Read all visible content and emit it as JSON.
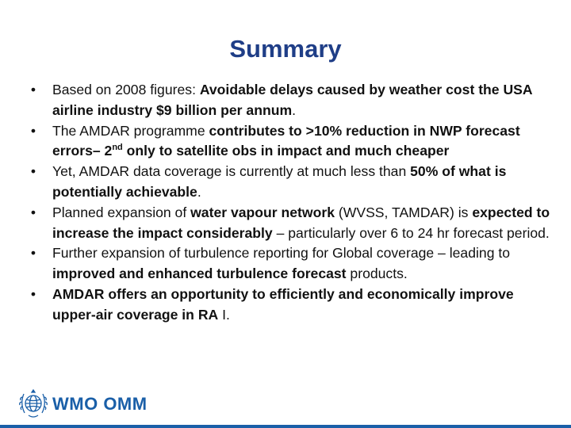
{
  "slide": {
    "title": "Summary",
    "bullets": [
      [
        {
          "t": "Based on 2008 figures: ",
          "b": false
        },
        {
          "t": "Avoidable delays caused by weather cost the USA airline industry $9 billion per annum",
          "b": true
        },
        {
          "t": ".",
          "b": false
        }
      ],
      [
        {
          "t": "The AMDAR programme ",
          "b": false
        },
        {
          "t": "contributes to >10% reduction in NWP forecast errors– 2",
          "b": true
        },
        {
          "t": "nd",
          "b": true,
          "sup": true
        },
        {
          "t": " only to satellite obs in impact and much cheaper",
          "b": true
        }
      ],
      [
        {
          "t": "Yet, AMDAR data coverage is currently at much less than ",
          "b": false
        },
        {
          "t": "50% of what is potentially achievable",
          "b": true
        },
        {
          "t": ".",
          "b": false
        }
      ],
      [
        {
          "t": "Planned expansion of ",
          "b": false
        },
        {
          "t": "water vapour network",
          "b": true
        },
        {
          "t": " (WVSS, TAMDAR) is ",
          "b": false
        },
        {
          "t": "expected to increase the impact considerably",
          "b": true
        },
        {
          "t": " – particularly over 6 to 24 hr forecast period.",
          "b": false
        }
      ],
      [
        {
          "t": "Further expansion of turbulence reporting for Global coverage – leading to ",
          "b": false
        },
        {
          "t": "improved and enhanced turbulence forecast",
          "b": true
        },
        {
          "t": " products.",
          "b": false
        }
      ],
      [
        {
          "t": "AMDAR offers an opportunity to efficiently and economically improve upper-air coverage in RA",
          "b": true
        },
        {
          "t": " I.",
          "b": false
        }
      ]
    ],
    "bullet_glyph": "•"
  },
  "footer": {
    "logo_text": "WMO OMM",
    "logo_icon": "wmo-emblem-icon",
    "brand_color": "#1a5fa8"
  },
  "colors": {
    "title": "#1f3e87",
    "body_text": "#111111"
  }
}
